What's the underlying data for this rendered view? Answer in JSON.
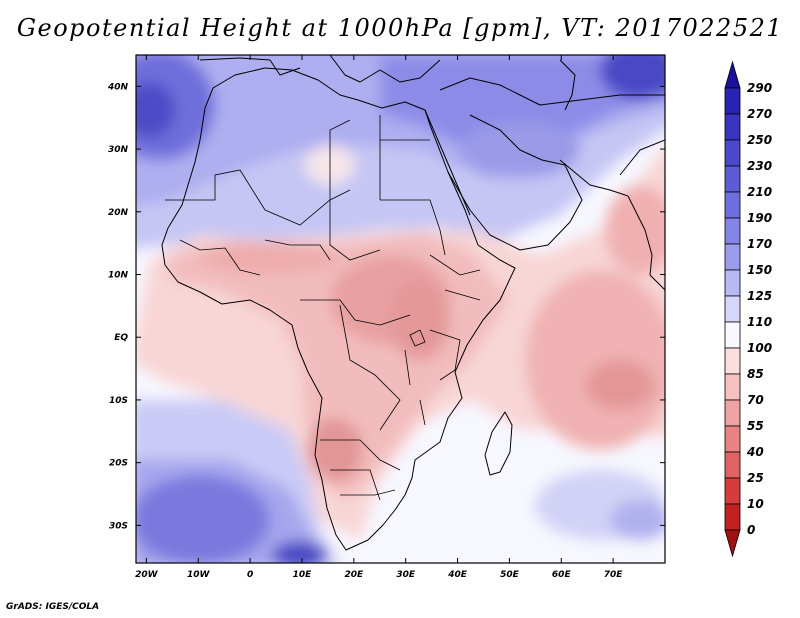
{
  "title": "Geopotential Height at 1000hPa [gpm], VT: 2017022521",
  "credit": "GrADS: IGES/COLA",
  "chart_data": {
    "type": "heatmap",
    "variable": "Geopotential Height at 1000hPa",
    "units": "gpm",
    "valid_time": "2017022521",
    "lon_range": [
      -22,
      80
    ],
    "lat_range": [
      -36,
      45
    ],
    "x_ticks": [
      {
        "value": -20,
        "label": "20W"
      },
      {
        "value": -10,
        "label": "10W"
      },
      {
        "value": 0,
        "label": "0"
      },
      {
        "value": 10,
        "label": "10E"
      },
      {
        "value": 20,
        "label": "20E"
      },
      {
        "value": 30,
        "label": "30E"
      },
      {
        "value": 40,
        "label": "40E"
      },
      {
        "value": 50,
        "label": "50E"
      },
      {
        "value": 60,
        "label": "60E"
      },
      {
        "value": 70,
        "label": "70E"
      }
    ],
    "y_ticks": [
      {
        "value": 40,
        "label": "40N"
      },
      {
        "value": 30,
        "label": "30N"
      },
      {
        "value": 20,
        "label": "20N"
      },
      {
        "value": 10,
        "label": "10N"
      },
      {
        "value": 0,
        "label": "EQ"
      },
      {
        "value": -10,
        "label": "10S"
      },
      {
        "value": -20,
        "label": "20S"
      },
      {
        "value": -30,
        "label": "30S"
      }
    ],
    "colorbar": {
      "labels": [
        "290",
        "270",
        "250",
        "230",
        "210",
        "190",
        "170",
        "150",
        "125",
        "110",
        "100",
        "85",
        "70",
        "55",
        "40",
        "25",
        "10",
        "0"
      ],
      "colors": [
        "#1c10a0",
        "#2a22b4",
        "#3a34c0",
        "#4a48cc",
        "#5c5cd6",
        "#6e6ede",
        "#8484e6",
        "#9c9cee",
        "#b8b8f4",
        "#d6d6fa",
        "#f8f8ff",
        "#fbdede",
        "#f6c0c0",
        "#efa2a2",
        "#e88484",
        "#e06262",
        "#d63c3c",
        "#c42020",
        "#a41010"
      ]
    }
  }
}
